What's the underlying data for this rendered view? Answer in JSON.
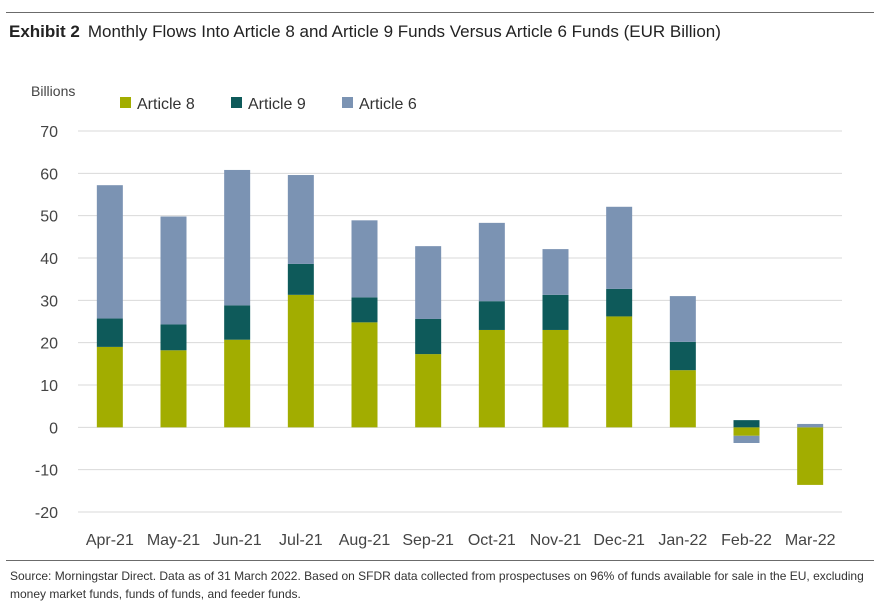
{
  "title": {
    "exhibit": "Exhibit 2",
    "text": "Monthly Flows Into Article 8 and Article 9 Funds Versus Article 6 Funds (EUR Billion)"
  },
  "colors": {
    "article8": "#a2ad00",
    "article9": "#0e5a5a",
    "article6": "#7b93b3",
    "grid": "#d9d9d9",
    "axis_text": "#444444"
  },
  "chart_data": {
    "type": "bar",
    "stacked": true,
    "title": "Monthly Flows Into Article 8 and Article 9 Funds Versus Article 6 Funds (EUR Billion)",
    "ylabel": "Billions",
    "xlabel": "",
    "ylim": [
      -20,
      70
    ],
    "yticks": [
      70,
      60,
      50,
      40,
      30,
      20,
      10,
      0,
      -10,
      -20
    ],
    "grid": true,
    "legend_position": "top-left",
    "categories": [
      "Apr-21",
      "May-21",
      "Jun-21",
      "Jul-21",
      "Aug-21",
      "Sep-21",
      "Oct-21",
      "Nov-21",
      "Dec-21",
      "Jan-22",
      "Feb-22",
      "Mar-22"
    ],
    "series": [
      {
        "name": "Article 8",
        "key": "article8",
        "values": [
          19.0,
          18.2,
          20.7,
          31.3,
          24.8,
          17.3,
          23.0,
          23.0,
          26.2,
          13.5,
          -2.0,
          -13.6
        ]
      },
      {
        "name": "Article 9",
        "key": "article9",
        "values": [
          6.7,
          6.1,
          8.1,
          7.3,
          5.9,
          8.3,
          6.8,
          8.3,
          6.5,
          6.7,
          1.7,
          0.0
        ]
      },
      {
        "name": "Article 6",
        "key": "article6",
        "values": [
          31.5,
          25.5,
          32.0,
          21.0,
          18.2,
          17.2,
          18.5,
          10.8,
          19.4,
          10.8,
          -1.7,
          0.8
        ]
      }
    ]
  },
  "source": "Source: Morningstar Direct. Data as of 31 March 2022. Based on SFDR data collected from prospectuses on 96% of funds available for sale in the EU, excluding money market funds, funds of funds, and feeder funds."
}
